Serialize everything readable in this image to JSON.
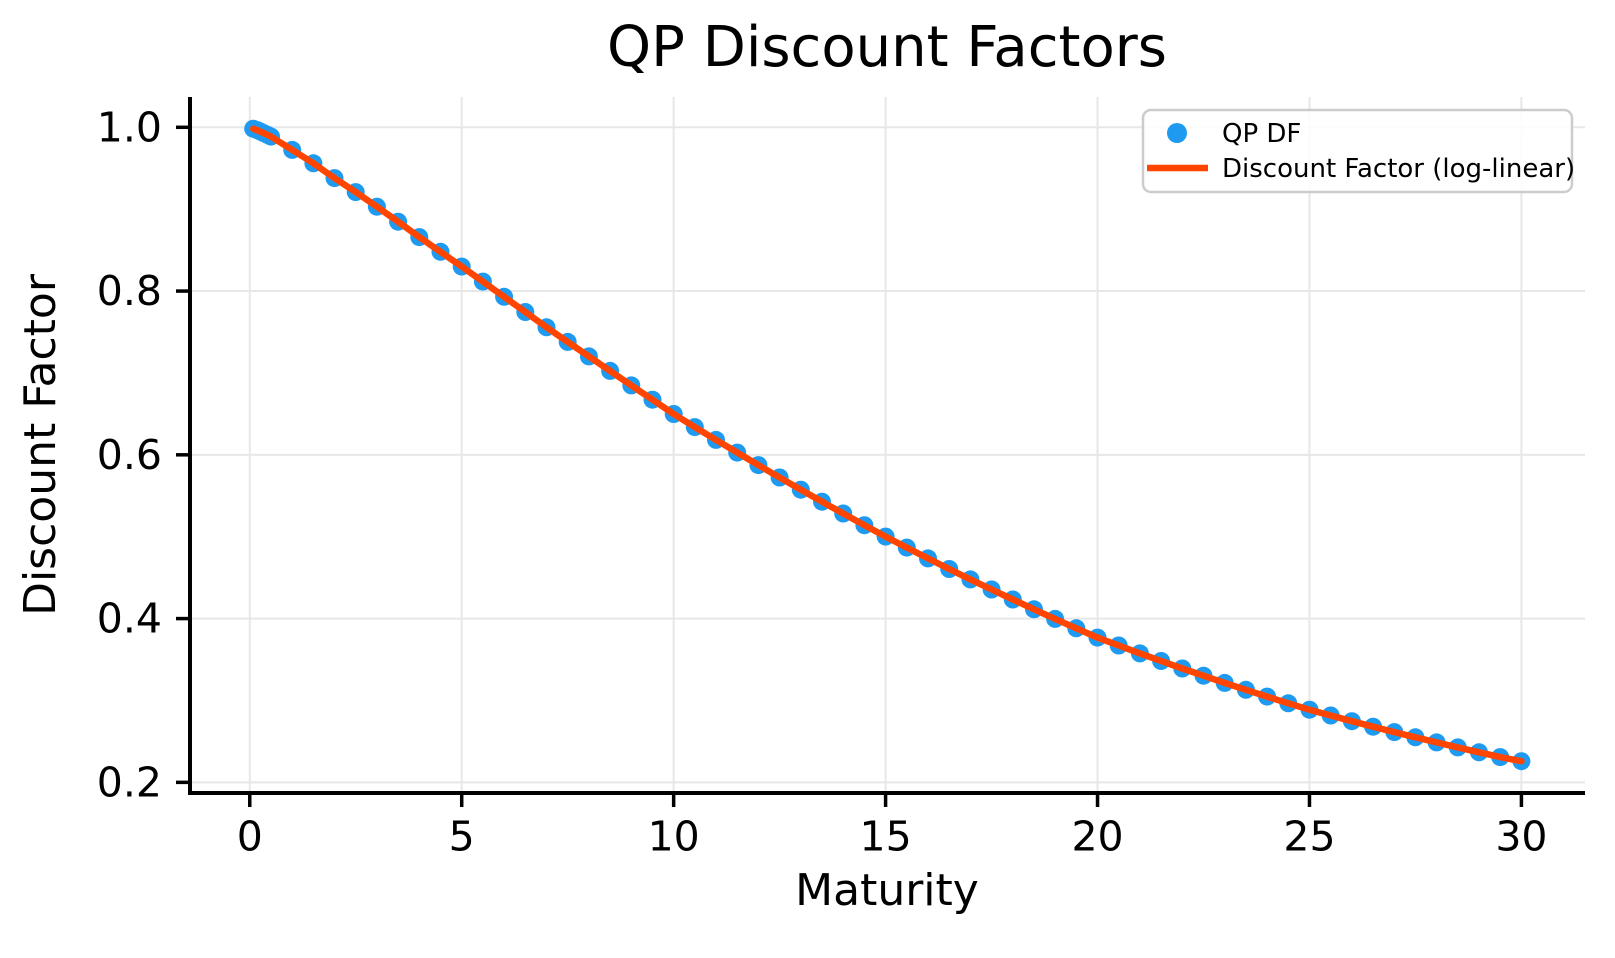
{
  "figure": {
    "background": "#ffffff",
    "grid_color": "#e7e7e7",
    "spine_color": "#000000",
    "tick_color": "#000000"
  },
  "legend": {
    "position": "upper right",
    "border_color": "#cccccc",
    "background": "#ffffff",
    "items": [
      {
        "label": "QP DF",
        "marker": "dot",
        "color": "#1e9bf0"
      },
      {
        "label": "Discount Factor (log-linear)",
        "marker": "line",
        "color": "#ff4500"
      }
    ]
  },
  "chart_data": {
    "type": "scatter",
    "title": "QP Discount Factors",
    "xlabel": "Maturity",
    "ylabel": "Discount Factor",
    "xlim": [
      -1.41,
      31.5
    ],
    "ylim": [
      0.187,
      1.037
    ],
    "xticks": [
      0,
      5,
      10,
      15,
      20,
      25,
      30
    ],
    "yticks": [
      0.2,
      0.4,
      0.6,
      0.8,
      1.0
    ],
    "grid": true,
    "legend_position": "upper right",
    "series_share_data": true,
    "series": [
      {
        "name": "QP DF",
        "type": "scatter",
        "color": "#1e9bf0",
        "marker_radius": 9
      },
      {
        "name": "Discount Factor (log-linear)",
        "type": "line",
        "color": "#ff4500",
        "line_width": 6.5
      }
    ],
    "x": [
      0.08,
      0.17,
      0.25,
      0.33,
      0.42,
      0.5,
      1.0,
      1.5,
      2.0,
      2.5,
      3.0,
      3.5,
      4.0,
      4.5,
      5.0,
      5.5,
      6.0,
      6.5,
      7.0,
      7.5,
      8.0,
      8.5,
      9.0,
      9.5,
      10.0,
      10.5,
      11.0,
      11.5,
      12.0,
      12.5,
      13.0,
      13.5,
      14.0,
      14.5,
      15.0,
      15.5,
      16.0,
      16.5,
      17.0,
      17.5,
      18.0,
      18.5,
      19.0,
      19.5,
      20.0,
      20.5,
      21.0,
      21.5,
      22.0,
      22.5,
      23.0,
      23.5,
      24.0,
      24.5,
      25.0,
      25.5,
      26.0,
      26.5,
      27.0,
      27.5,
      28.0,
      28.5,
      29.0,
      29.5,
      30.0
    ],
    "y": [
      0.9983,
      0.9966,
      0.9948,
      0.9928,
      0.9907,
      0.9886,
      0.9724,
      0.956,
      0.938,
      0.9208,
      0.903,
      0.8847,
      0.8659,
      0.848,
      0.8299,
      0.8115,
      0.793,
      0.7744,
      0.7558,
      0.7379,
      0.7202,
      0.7025,
      0.6848,
      0.6673,
      0.6499,
      0.6339,
      0.6182,
      0.6027,
      0.5874,
      0.5723,
      0.5574,
      0.5427,
      0.5283,
      0.5141,
      0.5001,
      0.4867,
      0.4735,
      0.4606,
      0.4479,
      0.4355,
      0.4233,
      0.4113,
      0.3996,
      0.3881,
      0.3768,
      0.3671,
      0.3575,
      0.3482,
      0.3391,
      0.3302,
      0.3215,
      0.313,
      0.3047,
      0.2966,
      0.2887,
      0.2816,
      0.2747,
      0.268,
      0.2614,
      0.255,
      0.2488,
      0.2427,
      0.2367,
      0.2309,
      0.2258
    ]
  }
}
